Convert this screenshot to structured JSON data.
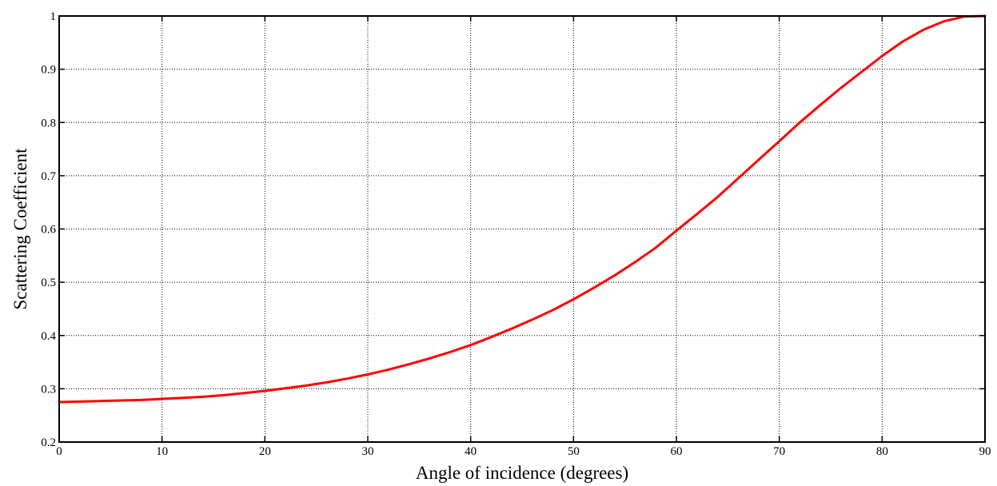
{
  "chart_data": {
    "type": "line",
    "title": "",
    "xlabel": "Angle of incidence (degrees)",
    "ylabel": "Scattering Coefficient",
    "xlim": [
      0,
      90
    ],
    "ylim": [
      0.2,
      1.0
    ],
    "x_ticks": [
      0,
      10,
      20,
      30,
      40,
      50,
      60,
      70,
      80,
      90
    ],
    "y_ticks": [
      0.2,
      0.3,
      0.4,
      0.5,
      0.6,
      0.7,
      0.8,
      0.9,
      1.0
    ],
    "x_tick_labels": [
      "0",
      "10",
      "20",
      "30",
      "40",
      "50",
      "60",
      "70",
      "80",
      "90"
    ],
    "y_tick_labels": [
      "0.2",
      "0.3",
      "0.4",
      "0.5",
      "0.6",
      "0.7",
      "0.8",
      "0.9",
      "1"
    ],
    "grid": true,
    "legend": "none",
    "series": [
      {
        "color": "#ff0000",
        "x": [
          0,
          2,
          4,
          6,
          8,
          10,
          12,
          14,
          16,
          18,
          20,
          22,
          24,
          26,
          28,
          30,
          32,
          34,
          36,
          38,
          40,
          42,
          44,
          46,
          48,
          50,
          52,
          54,
          56,
          58,
          60,
          62,
          64,
          66,
          68,
          70,
          72,
          74,
          76,
          78,
          80,
          82,
          84,
          86,
          88,
          90
        ],
        "y": [
          0.275,
          0.276,
          0.277,
          0.278,
          0.279,
          0.281,
          0.283,
          0.285,
          0.288,
          0.292,
          0.296,
          0.301,
          0.306,
          0.312,
          0.319,
          0.327,
          0.336,
          0.346,
          0.357,
          0.369,
          0.382,
          0.397,
          0.413,
          0.43,
          0.448,
          0.468,
          0.49,
          0.513,
          0.538,
          0.565,
          0.597,
          0.628,
          0.66,
          0.695,
          0.73,
          0.765,
          0.8,
          0.833,
          0.865,
          0.895,
          0.925,
          0.952,
          0.974,
          0.99,
          0.999,
          1.0
        ]
      }
    ]
  }
}
